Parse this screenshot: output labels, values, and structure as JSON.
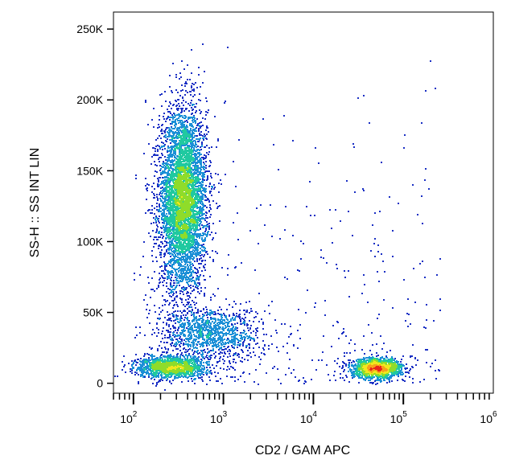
{
  "chart_data": {
    "type": "scatter",
    "title": "",
    "xlabel": "CD2 / GAM APC",
    "ylabel": "SS-H :: SS INT LIN",
    "x_scale": "log",
    "xlim": [
      60,
      1000000
    ],
    "ylim": [
      -7000,
      262000
    ],
    "x_ticks": [
      {
        "value": 100,
        "base": "10",
        "exp": "2"
      },
      {
        "value": 1000,
        "base": "10",
        "exp": "3"
      },
      {
        "value": 10000,
        "base": "10",
        "exp": "4"
      },
      {
        "value": 100000,
        "base": "10",
        "exp": "5"
      },
      {
        "value": 1000000,
        "base": "10",
        "exp": "6"
      }
    ],
    "y_ticks": [
      {
        "value": 0,
        "label": "0"
      },
      {
        "value": 50000,
        "label": "50K"
      },
      {
        "value": 100000,
        "label": "100K"
      },
      {
        "value": 150000,
        "label": "150K"
      },
      {
        "value": 200000,
        "label": "200K"
      },
      {
        "value": 250000,
        "label": "250K"
      }
    ],
    "populations": [
      {
        "x_center": 350,
        "y_center": 130000,
        "x_spread_log": 0.13,
        "y_spread": 32000,
        "count": 5200
      },
      {
        "x_center": 700,
        "y_center": 36000,
        "x_spread_log": 0.28,
        "y_spread": 9000,
        "count": 1100
      },
      {
        "x_center": 270,
        "y_center": 12000,
        "x_spread_log": 0.2,
        "y_spread": 4000,
        "count": 1400
      },
      {
        "x_center": 50000,
        "y_center": 11000,
        "x_spread_log": 0.14,
        "y_spread": 3500,
        "count": 1500
      }
    ],
    "colormap": [
      "#1a2fc4",
      "#1b8fd6",
      "#20c9a0",
      "#8fdc2a",
      "#f0e81d",
      "#f7a11b",
      "#e8251b"
    ],
    "grid": false
  }
}
